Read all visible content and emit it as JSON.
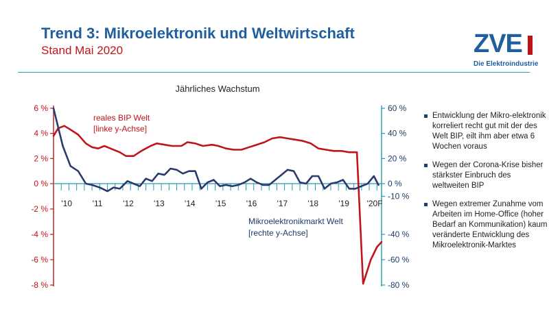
{
  "header": {
    "title": "Trend 3: Mikroelektronik und Weltwirtschaft",
    "subtitle": "Stand Mai 2020"
  },
  "logo": {
    "wordmark": "ZVEI",
    "tagline": "Die Elektroindustrie"
  },
  "notes": [
    "Entwicklung der Mikro-elektronik korreliert recht gut mit der des Welt BIP, eilt ihm aber etwa 6 Wochen voraus",
    "Wegen der Corona-Krise bisher stärkster Einbruch des weltweiten BIP",
    "Wegen extremer Zunahme vom Arbeiten im  Home-Office (hoher Bedarf an Kommunikation) kaum veränderte Entwicklung des Mikroelektronik-Marktes"
  ],
  "colors": {
    "bip": "#c0141b",
    "market": "#2b3a6b",
    "right_axis": "#1f9bb5",
    "left_axis": "#c0141b"
  },
  "chart_data": {
    "type": "line",
    "title": "Jährliches Wachstum",
    "x_labels": [
      "'10",
      "'11",
      "'12",
      "'13",
      "'14",
      "'15",
      "'16",
      "'17",
      "'18",
      "'19",
      "'20F"
    ],
    "x_start": 2009.75,
    "x_end": 2020.4,
    "y_left": {
      "label": "",
      "min": -8,
      "max": 6,
      "ticks": [
        6,
        4,
        2,
        0,
        -2,
        -4,
        -6,
        -8
      ],
      "unit": " %"
    },
    "y_right": {
      "label": "",
      "min": -80,
      "max": 60,
      "ticks": [
        60,
        40,
        20,
        0,
        -10,
        -40,
        -60,
        -80
      ],
      "tick_labels": [
        "60 %",
        "40 %",
        "20 %",
        "0 %",
        "-10 %",
        "-40 %",
        "-60 %",
        "-80 %"
      ]
    },
    "series": [
      {
        "name": "reales BIP Welt",
        "axis_note": "[linke y-Achse]",
        "axis": "left",
        "x": [
          2009.75,
          2009.9,
          2010.1,
          2010.3,
          2010.55,
          2010.8,
          2011.0,
          2011.2,
          2011.4,
          2011.6,
          2011.9,
          2012.1,
          2012.35,
          2012.6,
          2012.9,
          2013.1,
          2013.35,
          2013.6,
          2013.9,
          2014.1,
          2014.35,
          2014.6,
          2014.9,
          2015.1,
          2015.35,
          2015.6,
          2015.85,
          2016.1,
          2016.35,
          2016.6,
          2016.85,
          2017.1,
          2017.35,
          2017.6,
          2017.85,
          2018.1,
          2018.35,
          2018.6,
          2018.85,
          2019.1,
          2019.35,
          2019.6,
          2019.8,
          2020.05,
          2020.25,
          2020.4
        ],
        "y": [
          3.8,
          4.4,
          4.6,
          4.3,
          3.9,
          3.2,
          2.9,
          2.8,
          3.0,
          2.8,
          2.5,
          2.2,
          2.2,
          2.6,
          3.0,
          3.2,
          3.1,
          3.0,
          3.0,
          3.3,
          3.2,
          3.0,
          3.1,
          3.0,
          2.8,
          2.7,
          2.7,
          2.9,
          3.1,
          3.3,
          3.6,
          3.7,
          3.6,
          3.5,
          3.4,
          3.2,
          2.8,
          2.7,
          2.6,
          2.6,
          2.5,
          2.5,
          -7.9,
          -6.0,
          -5.0,
          -4.6
        ]
      },
      {
        "name": "Mikroelektronikmarkt Welt",
        "axis_note": "[rechte y-Achse]",
        "axis": "right",
        "x": [
          2009.75,
          2009.9,
          2010.05,
          2010.3,
          2010.55,
          2010.8,
          2011.0,
          2011.25,
          2011.5,
          2011.7,
          2011.9,
          2012.15,
          2012.35,
          2012.55,
          2012.75,
          2012.95,
          2013.15,
          2013.35,
          2013.55,
          2013.75,
          2013.95,
          2014.15,
          2014.35,
          2014.55,
          2014.75,
          2014.95,
          2015.15,
          2015.35,
          2015.55,
          2015.75,
          2015.95,
          2016.15,
          2016.35,
          2016.55,
          2016.75,
          2016.95,
          2017.15,
          2017.35,
          2017.55,
          2017.75,
          2017.95,
          2018.15,
          2018.35,
          2018.55,
          2018.75,
          2018.95,
          2019.15,
          2019.35,
          2019.55,
          2019.75,
          2019.95,
          2020.15,
          2020.3
        ],
        "y": [
          60,
          45,
          30,
          14,
          10,
          0,
          -1,
          -3,
          -6,
          -3,
          -4,
          2,
          0,
          -2,
          4,
          2,
          8,
          7,
          12,
          11,
          8,
          10,
          10,
          -4,
          1,
          3,
          -2,
          -1,
          -2,
          -1,
          1,
          4,
          1,
          -1,
          -1,
          3,
          7,
          11,
          10,
          1,
          0,
          6,
          6,
          -4,
          0,
          1,
          3,
          -4,
          -4,
          -2,
          0,
          6,
          -1
        ]
      }
    ]
  }
}
